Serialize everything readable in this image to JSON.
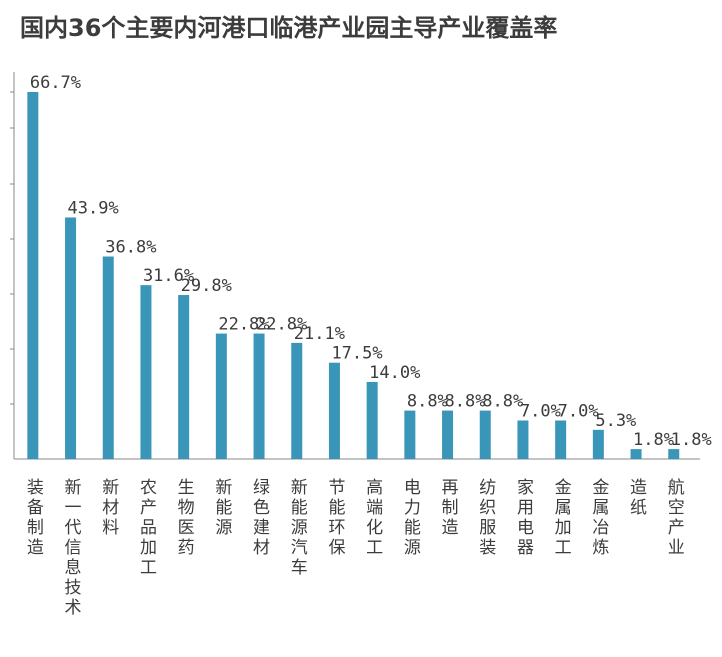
{
  "chart_data": {
    "type": "bar",
    "title": "国内36个主要内河港口临港产业园主导产业覆盖率",
    "categories": [
      "装备制造",
      "新一代信息技术",
      "新材料",
      "农产品加工",
      "生物医药",
      "新能源",
      "绿色建材",
      "新能源汽车",
      "节能环保",
      "高端化工",
      "电力能源",
      "再制造",
      "纺织服装",
      "家用电器",
      "金属加工",
      "金属冶炼",
      "造纸",
      "航空产业"
    ],
    "values": [
      66.7,
      43.9,
      36.8,
      31.6,
      29.8,
      22.8,
      22.8,
      21.1,
      17.5,
      14.0,
      8.8,
      8.8,
      8.8,
      7.0,
      7.0,
      5.3,
      1.8,
      1.8
    ],
    "data_labels": [
      "66.7%",
      "43.9%",
      "36.8%",
      "31.6%",
      "29.8%",
      "22.8%",
      "22.8%",
      "21.1%",
      "17.5%",
      "14.0%",
      "8.8%",
      "8.8%",
      "8.8%",
      "7.0%",
      "7.0%",
      "5.3%",
      "1.8%",
      "1.8%"
    ],
    "ylim": [
      0,
      66.7
    ],
    "grid": false,
    "bar_color": "#3a96b9"
  }
}
